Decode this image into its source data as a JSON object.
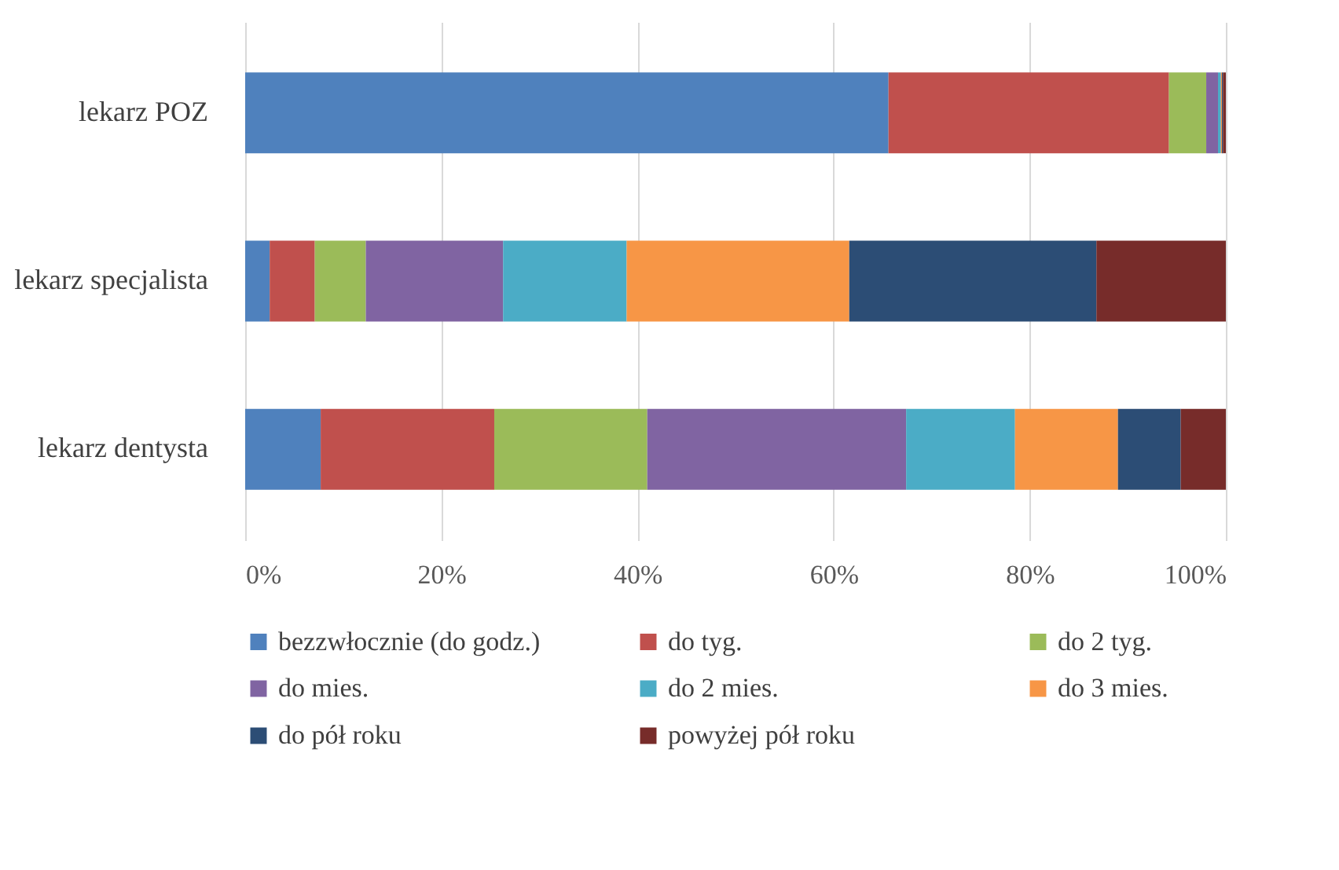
{
  "chart_data": {
    "type": "bar",
    "orientation": "horizontal",
    "stacked": true,
    "categories": [
      "lekarz POZ",
      "lekarz specjalista",
      "lekarz dentysta"
    ],
    "xlim": [
      0,
      100
    ],
    "xticks": [
      {
        "value": 0,
        "label": "0%"
      },
      {
        "value": 20,
        "label": "20%"
      },
      {
        "value": 40,
        "label": "40%"
      },
      {
        "value": 60,
        "label": "60%"
      },
      {
        "value": 80,
        "label": "80%"
      },
      {
        "value": 100,
        "label": "100%"
      }
    ],
    "grid": "x",
    "legend": "bottom",
    "series": [
      {
        "name": "bezzwłocznie (do godz.)",
        "color": "#4f81bd",
        "values": [
          65.6,
          2.5,
          7.7
        ]
      },
      {
        "name": "do tyg.",
        "color": "#c0504d",
        "values": [
          28.6,
          4.6,
          17.7
        ]
      },
      {
        "name": "do 2 tyg.",
        "color": "#9bbb59",
        "values": [
          3.8,
          5.2,
          15.6
        ]
      },
      {
        "name": "do mies.",
        "color": "#8064a2",
        "values": [
          1.2,
          14.0,
          26.4
        ]
      },
      {
        "name": "do 2 mies.",
        "color": "#4bacc6",
        "values": [
          0.3,
          12.6,
          11.1
        ]
      },
      {
        "name": "do 3 mies.",
        "color": "#f79646",
        "values": [
          0.1,
          22.7,
          10.5
        ]
      },
      {
        "name": "do pół roku",
        "color": "#2c4d75",
        "values": [
          0.1,
          25.2,
          6.4
        ]
      },
      {
        "name": "powyżej pół roku",
        "color": "#772c2a",
        "values": [
          0.3,
          13.2,
          4.6
        ]
      }
    ]
  }
}
